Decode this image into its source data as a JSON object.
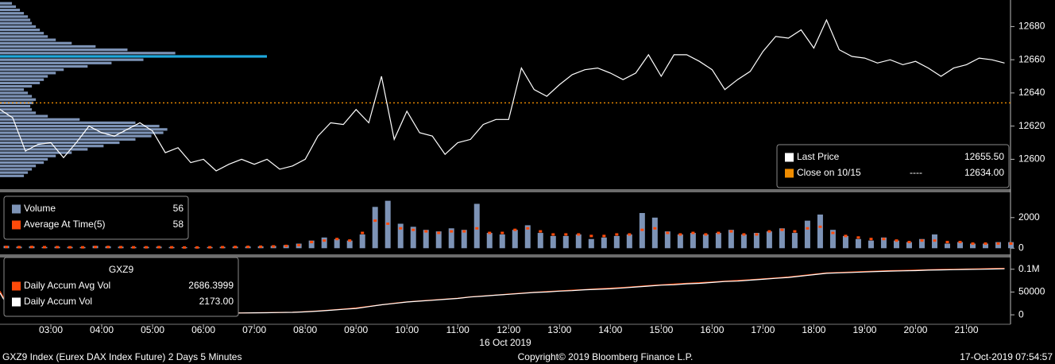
{
  "chart_data": [
    {
      "type": "line",
      "x": [
        "02:00",
        "02:15",
        "02:30",
        "02:45",
        "03:00",
        "03:15",
        "03:30",
        "03:45",
        "04:00",
        "04:15",
        "04:30",
        "04:45",
        "05:00",
        "05:15",
        "05:30",
        "05:45",
        "06:00",
        "06:15",
        "06:30",
        "06:45",
        "07:00",
        "07:15",
        "07:30",
        "07:45",
        "08:00",
        "08:15",
        "08:30",
        "08:45",
        "09:00",
        "09:15",
        "09:30",
        "09:45",
        "10:00",
        "10:15",
        "10:30",
        "10:45",
        "11:00",
        "11:15",
        "11:30",
        "11:45",
        "12:00",
        "12:15",
        "12:30",
        "12:45",
        "13:00",
        "13:15",
        "13:30",
        "13:45",
        "14:00",
        "14:15",
        "14:30",
        "14:45",
        "15:00",
        "15:15",
        "15:30",
        "15:45",
        "16:00",
        "16:15",
        "16:30",
        "16:45",
        "17:00",
        "17:15",
        "17:30",
        "17:45",
        "18:00",
        "18:15",
        "18:30",
        "18:45",
        "19:00",
        "19:15",
        "19:30",
        "19:45",
        "20:00",
        "20:15",
        "20:30",
        "20:45",
        "21:00",
        "21:15",
        "21:30",
        "21:45"
      ],
      "xlim": [
        "02:00",
        "21:52"
      ],
      "series": [
        {
          "name": "Last Price",
          "color": "#ffffff",
          "legend_value": "12655.50",
          "values": [
            12630,
            12625,
            12605,
            12609,
            12610,
            12601,
            12610,
            12620,
            12616,
            12614,
            12618,
            12622,
            12617,
            12604,
            12607,
            12598,
            12600,
            12593,
            12597,
            12600,
            12597,
            12600,
            12594,
            12596,
            12600,
            12614,
            12622,
            12621,
            12630,
            12622,
            12650,
            12612,
            12629,
            12616,
            12614,
            12603,
            12610,
            12612,
            12621,
            12624,
            12624,
            12655,
            12642,
            12638,
            12645,
            12651,
            12654,
            12655,
            12652,
            12648,
            12652,
            12663,
            12650,
            12663,
            12663,
            12659,
            12654,
            12642,
            12648,
            12653,
            12665,
            12674,
            12673,
            12678,
            12667,
            12684,
            12666,
            12662,
            12661,
            12658,
            12660,
            12657,
            12659,
            12655,
            12650,
            12655,
            12657,
            12661,
            12660,
            12658
          ]
        }
      ],
      "reference_line": {
        "name": "Close on 10/15",
        "style_label": "----",
        "value": 12634,
        "label": "12634.00",
        "color": "#f08c00"
      },
      "volume_profile": {
        "color": "#7d93b6",
        "highlight_color": "#1ea8dc",
        "highlight_price": 12662,
        "prices": [
          12590,
          12592,
          12594,
          12596,
          12598,
          12600,
          12602,
          12604,
          12606,
          12608,
          12610,
          12612,
          12614,
          12616,
          12618,
          12620,
          12622,
          12624,
          12626,
          12628,
          12630,
          12632,
          12634,
          12636,
          12638,
          12640,
          12642,
          12644,
          12646,
          12648,
          12650,
          12652,
          12654,
          12656,
          12658,
          12660,
          12662,
          12664,
          12666,
          12668,
          12670,
          12672,
          12674,
          12676,
          12678,
          12680,
          12682,
          12684,
          12686,
          12688,
          12690,
          12692,
          12694
        ],
        "values": [
          30,
          35,
          40,
          45,
          55,
          60,
          70,
          90,
          110,
          130,
          150,
          170,
          190,
          205,
          210,
          200,
          170,
          100,
          60,
          45,
          40,
          38,
          42,
          45,
          40,
          35,
          30,
          40,
          50,
          55,
          60,
          70,
          80,
          110,
          140,
          180,
          335,
          220,
          160,
          120,
          90,
          70,
          60,
          55,
          50,
          45,
          40,
          38,
          35,
          30,
          25,
          20,
          15
        ]
      },
      "ylim": [
        12582,
        12696
      ],
      "yticks": [
        12600,
        12620,
        12640,
        12660,
        12680
      ],
      "legend": "lower right"
    },
    {
      "type": "bar",
      "x": [
        "02:00",
        "02:15",
        "02:30",
        "02:45",
        "03:00",
        "03:15",
        "03:30",
        "03:45",
        "04:00",
        "04:15",
        "04:30",
        "04:45",
        "05:00",
        "05:15",
        "05:30",
        "05:45",
        "06:00",
        "06:15",
        "06:30",
        "06:45",
        "07:00",
        "07:15",
        "07:30",
        "07:45",
        "08:00",
        "08:15",
        "08:30",
        "08:45",
        "09:00",
        "09:15",
        "09:30",
        "09:45",
        "10:00",
        "10:15",
        "10:30",
        "10:45",
        "11:00",
        "11:15",
        "11:30",
        "11:45",
        "12:00",
        "12:15",
        "12:30",
        "12:45",
        "13:00",
        "13:15",
        "13:30",
        "13:45",
        "14:00",
        "14:15",
        "14:30",
        "14:45",
        "15:00",
        "15:15",
        "15:30",
        "15:45",
        "16:00",
        "16:15",
        "16:30",
        "16:45",
        "17:00",
        "17:15",
        "17:30",
        "17:45",
        "18:00",
        "18:15",
        "18:30",
        "18:45",
        "19:00",
        "19:15",
        "19:30",
        "19:45",
        "20:00",
        "20:15",
        "20:30",
        "20:45",
        "21:00",
        "21:15",
        "21:30",
        "21:45"
      ],
      "xlim": [
        "02:00",
        "21:52"
      ],
      "series": [
        {
          "name": "Volume",
          "color": "#7d93b6",
          "style": "bar",
          "legend_value": "56",
          "values": [
            150,
            100,
            120,
            80,
            100,
            90,
            80,
            150,
            120,
            100,
            80,
            90,
            100,
            80,
            70,
            60,
            80,
            90,
            100,
            110,
            120,
            150,
            200,
            300,
            500,
            700,
            600,
            500,
            900,
            2700,
            3100,
            1600,
            1400,
            1200,
            1100,
            1300,
            1200,
            2900,
            1000,
            900,
            1200,
            1500,
            1000,
            800,
            800,
            900,
            600,
            700,
            800,
            900,
            2300,
            2000,
            1100,
            900,
            1000,
            900,
            1000,
            1200,
            900,
            1000,
            1100,
            1300,
            1000,
            1800,
            2200,
            1200,
            800,
            600,
            500,
            700,
            500,
            400,
            600,
            900,
            300,
            400,
            300,
            300,
            400,
            400
          ]
        },
        {
          "name": "Average At Time(5)",
          "color": "#ff4a0a",
          "style": "dot",
          "legend_value": "58",
          "values": [
            80,
            70,
            80,
            70,
            70,
            60,
            60,
            80,
            80,
            70,
            60,
            60,
            70,
            60,
            50,
            50,
            60,
            70,
            80,
            90,
            100,
            120,
            150,
            200,
            400,
            500,
            600,
            500,
            1000,
            1800,
            1600,
            1300,
            1200,
            1100,
            1000,
            1100,
            1100,
            1300,
            1000,
            1000,
            1200,
            1300,
            1100,
            900,
            900,
            900,
            800,
            800,
            900,
            900,
            1200,
            1300,
            1000,
            900,
            1000,
            900,
            1000,
            1100,
            900,
            900,
            1100,
            1200,
            1100,
            1300,
            1400,
            1000,
            800,
            700,
            600,
            600,
            500,
            400,
            500,
            500,
            400,
            400,
            300,
            300,
            300,
            300
          ]
        }
      ],
      "ylim": [
        -400,
        3600
      ],
      "yticks": [
        0,
        2000
      ],
      "legend": "upper left"
    },
    {
      "type": "line",
      "title": "GXZ9",
      "x": [
        "02:00",
        "02:15",
        "02:30",
        "02:45",
        "03:00",
        "03:15",
        "03:30",
        "03:45",
        "04:00",
        "04:15",
        "04:30",
        "04:45",
        "05:00",
        "05:15",
        "05:30",
        "05:45",
        "06:00",
        "06:15",
        "06:30",
        "06:45",
        "07:00",
        "07:15",
        "07:30",
        "07:45",
        "08:00",
        "08:15",
        "08:30",
        "08:45",
        "09:00",
        "09:15",
        "09:30",
        "09:45",
        "10:00",
        "10:15",
        "10:30",
        "10:45",
        "11:00",
        "11:15",
        "11:30",
        "11:45",
        "12:00",
        "12:15",
        "12:30",
        "12:45",
        "13:00",
        "13:15",
        "13:30",
        "13:45",
        "14:00",
        "14:15",
        "14:30",
        "14:45",
        "15:00",
        "15:15",
        "15:30",
        "15:45",
        "16:00",
        "16:15",
        "16:30",
        "16:45",
        "17:00",
        "17:15",
        "17:30",
        "17:45",
        "18:00",
        "18:15",
        "18:30",
        "18:45",
        "19:00",
        "19:15",
        "19:30",
        "19:45",
        "20:00",
        "20:15",
        "20:30",
        "20:45",
        "21:00",
        "21:15",
        "21:30",
        "21:45"
      ],
      "xlim": [
        "02:00",
        "21:52"
      ],
      "xticks": [
        "03:00",
        "04:00",
        "05:00",
        "06:00",
        "07:00",
        "08:00",
        "09:00",
        "10:00",
        "11:00",
        "12:00",
        "13:00",
        "14:00",
        "15:00",
        "16:00",
        "17:00",
        "18:00",
        "19:00",
        "20:00",
        "21:00"
      ],
      "x_label": "16 Oct 2019",
      "series": [
        {
          "name": "Daily Accum Avg Vol",
          "color": "#ff4a0a",
          "legend_value": "2686.3999",
          "values": [
            52000,
            400,
            700,
            900,
            1100,
            1300,
            1500,
            1700,
            2000,
            2200,
            2400,
            2600,
            2800,
            3000,
            3200,
            3400,
            3600,
            3800,
            4000,
            4200,
            4500,
            4800,
            5200,
            5800,
            7000,
            8500,
            10500,
            12500,
            15000,
            18500,
            22000,
            25500,
            28500,
            30500,
            32500,
            34500,
            36500,
            39500,
            41500,
            43500,
            45500,
            47500,
            49500,
            51000,
            52500,
            54000,
            55500,
            57000,
            58500,
            60000,
            62000,
            64000,
            66000,
            67500,
            69000,
            70500,
            72000,
            74000,
            75500,
            77000,
            79000,
            81000,
            83000,
            86000,
            89000,
            92000,
            93000,
            94000,
            95000,
            96000,
            97000,
            97500,
            98000,
            99000,
            99500,
            100000,
            100500,
            101000,
            101500,
            102000
          ]
        },
        {
          "name": "Daily Accum Vol",
          "color": "#ffffff",
          "legend_value": "2173.00",
          "values": [
            48000,
            300,
            600,
            800,
            1000,
            1200,
            1400,
            1600,
            1900,
            2100,
            2300,
            2500,
            2700,
            2900,
            3000,
            3200,
            3400,
            3600,
            3800,
            4000,
            4300,
            4600,
            5000,
            5500,
            6500,
            8000,
            10000,
            12000,
            14000,
            18000,
            22000,
            25000,
            28000,
            30000,
            32000,
            34000,
            36000,
            39000,
            41000,
            43000,
            45000,
            47000,
            49000,
            50000,
            52000,
            53000,
            55000,
            56000,
            57000,
            59000,
            61000,
            63000,
            65000,
            66000,
            68000,
            69000,
            71000,
            73000,
            74000,
            76000,
            78000,
            80000,
            82000,
            85000,
            88000,
            91000,
            92000,
            93000,
            94000,
            95000,
            96000,
            96500,
            97000,
            98000,
            98500,
            99000,
            99500,
            100000,
            100500,
            101000
          ]
        }
      ],
      "ylim": [
        -19000,
        124000
      ],
      "yticks": [
        0,
        50000,
        {
          "value": 100000,
          "label": "0.1M"
        }
      ],
      "legend": "left"
    }
  ],
  "footer": {
    "left": "GXZ9 Index (Eurex DAX Index Future) 2 Days 5 Minutes",
    "center": "Copyright© 2019 Bloomberg Finance L.P.",
    "right": "17-Oct-2019 07:54:57"
  }
}
